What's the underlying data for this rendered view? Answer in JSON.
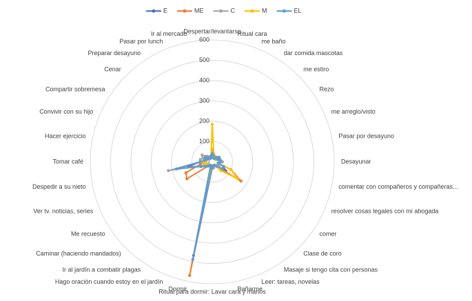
{
  "chart_data": {
    "type": "radar",
    "categories": [
      "Despertar/levantarse",
      "Ritual cara",
      "me baño",
      "dar comida mascotas",
      "me estiro",
      "Rezo",
      "me arreglo/visto",
      "Pasar por desayuno",
      "Desayunar",
      "comentar con compañeros y compañeras...",
      "resolver cosas legales con mi abogada",
      "comer",
      "Clase de coro",
      "Masaje si tengo cita con personas",
      "Leer: tareas, novelas",
      "Bañarme",
      "Ritual para dormir: Lavar cara y manos",
      "Dormir",
      "Hago oración cuando estoy en el jardín",
      "Ir al jardín a combatir plagas",
      "Caminar (haciendo mandados)",
      "Me recuesto",
      "Ver tv. noticias, series",
      "Despedir a su nieto",
      "Tomar café",
      "Hacer ejercicio",
      "Convivir con su hijo",
      "Compartir sobremesa",
      "Cenar",
      "Preparar desayuno",
      "Pasar por lunch",
      "Ir al mercado"
    ],
    "series": [
      {
        "name": "E",
        "color": "#4472c4",
        "values": [
          40,
          30,
          20,
          20,
          30,
          40,
          30,
          40,
          50,
          30,
          60,
          80,
          30,
          20,
          20,
          20,
          30,
          470,
          20,
          20,
          30,
          40,
          60,
          120,
          60,
          40,
          30,
          40,
          30,
          20,
          20,
          30
        ]
      },
      {
        "name": "ME",
        "color": "#ed7d31",
        "values": [
          50,
          30,
          20,
          20,
          30,
          40,
          30,
          40,
          40,
          30,
          100,
          170,
          30,
          20,
          20,
          30,
          30,
          570,
          20,
          20,
          30,
          150,
          140,
          60,
          40,
          40,
          30,
          40,
          30,
          20,
          20,
          30
        ]
      },
      {
        "name": "C",
        "color": "#a5a5a5",
        "values": [
          60,
          40,
          30,
          30,
          30,
          30,
          40,
          40,
          50,
          30,
          30,
          40,
          30,
          20,
          20,
          20,
          20,
          60,
          20,
          20,
          20,
          30,
          40,
          220,
          60,
          60,
          50,
          60,
          40,
          30,
          20,
          30
        ]
      },
      {
        "name": "M",
        "color": "#ffc000",
        "values": [
          185,
          40,
          30,
          20,
          20,
          20,
          30,
          40,
          40,
          30,
          100,
          150,
          60,
          20,
          20,
          20,
          30,
          80,
          20,
          20,
          20,
          30,
          30,
          40,
          40,
          30,
          30,
          30,
          30,
          20,
          20,
          30
        ]
      },
      {
        "name": "EL",
        "color": "#5b9bd5",
        "values": [
          40,
          30,
          20,
          20,
          30,
          40,
          30,
          40,
          40,
          30,
          60,
          60,
          30,
          20,
          20,
          20,
          30,
          490,
          20,
          20,
          30,
          40,
          60,
          180,
          60,
          40,
          30,
          40,
          30,
          20,
          20,
          30
        ]
      }
    ],
    "ylim": [
      0,
      600
    ],
    "yticks": [
      0,
      100,
      200,
      300,
      400,
      500,
      600
    ],
    "grid": true,
    "legend": "top"
  }
}
